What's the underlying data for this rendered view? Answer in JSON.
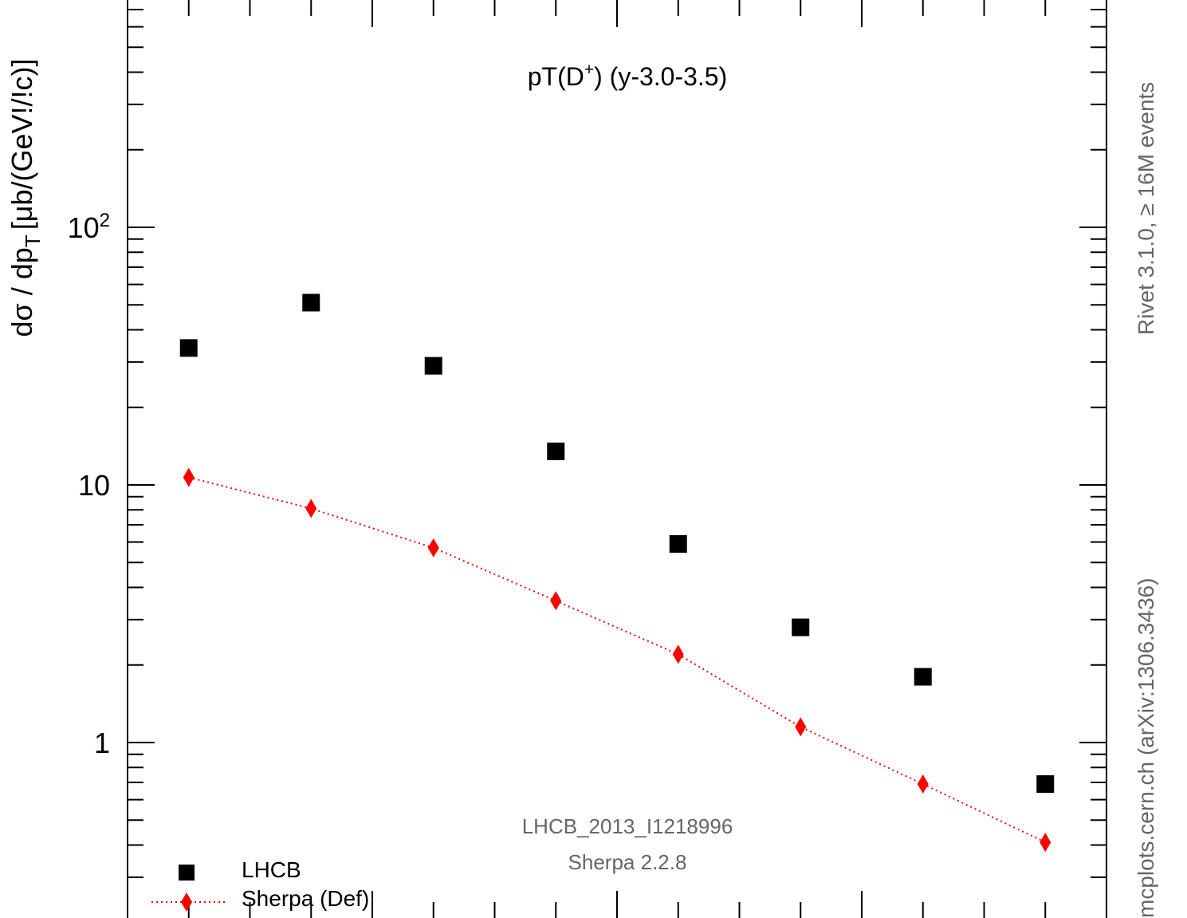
{
  "chart_data": {
    "type": "scatter",
    "title": "pT(D",
    "title_sup": "+",
    "title_tail": ") (y-3.0-3.5)",
    "ylabel": "dσ / dp",
    "ylabel_sub": "T",
    "ylabel_unit": "[μb/(GeV!/!c)]",
    "y_scale": "log",
    "ylim": [
      0.27,
      950
    ],
    "xlim": [
      0,
      8
    ],
    "y_tick_labels": [
      {
        "value": 1,
        "label": "1"
      },
      {
        "value": 10,
        "label": "10"
      },
      {
        "value": 100,
        "label": "10",
        "sup": "2"
      }
    ],
    "grid": false,
    "legend_position": "bottom-left",
    "colors": {
      "data": "#000000",
      "mc": "#ff0000",
      "annotation": "#666666"
    },
    "series": [
      {
        "name": "LHCB",
        "marker": "square",
        "line": "none",
        "x": [
          0.5,
          1.5,
          2.5,
          3.5,
          4.5,
          5.5,
          6.5,
          7.5
        ],
        "y": [
          34,
          51,
          29,
          13.5,
          5.9,
          2.8,
          1.8,
          0.69
        ]
      },
      {
        "name": "Sherpa (Def)",
        "marker": "diamond",
        "line": "dotted",
        "x": [
          0.5,
          1.5,
          2.5,
          3.5,
          4.5,
          5.5,
          6.5,
          7.5
        ],
        "y": [
          10.7,
          8.1,
          5.7,
          3.55,
          2.2,
          1.15,
          0.69,
          0.41
        ]
      }
    ],
    "annotations": {
      "analysis": "LHCB_2013_I1218996",
      "generator": "Sherpa 2.2.8",
      "rivet": "Rivet 3.1.0, ≥ 16M events",
      "source": "mcplots.cern.ch (arXiv:1306.3436)"
    }
  }
}
